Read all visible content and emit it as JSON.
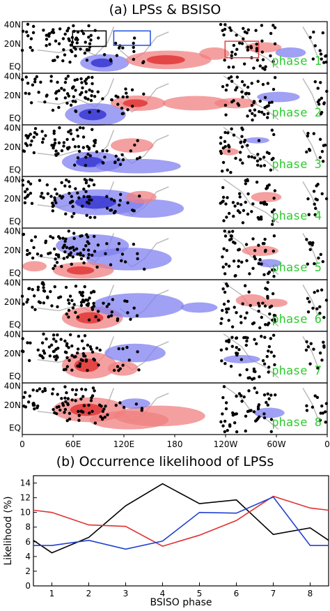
{
  "panel_a": {
    "title": "(a) LPSs & BSISO",
    "lat_labels": [
      "40N",
      "20N",
      "EQ"
    ],
    "lon_labels": [
      "0",
      "60E",
      "120E",
      "180",
      "120W",
      "60W",
      "0"
    ],
    "phase_labels": [
      "phase 1",
      "phase 2",
      "phase 3",
      "phase 4",
      "phase 5",
      "phase 6",
      "phase 7",
      "phase 8"
    ],
    "colors": {
      "positive": "#f08080",
      "positive_strong": "#e03030",
      "negative": "#8080f0",
      "negative_strong": "#3030d0",
      "dots": "#000000",
      "coast": "#b8b8b8",
      "phase_label": "#2ecc2e"
    },
    "boxes": [
      {
        "color": "#000000"
      },
      {
        "color": "#2050e0"
      },
      {
        "color": "#e04040"
      }
    ]
  },
  "chart_data": {
    "type": "line",
    "title": "(b) Occurrence likelihood of LPSs",
    "xlabel": "BSISO phase",
    "ylabel": "Likelihood (%)",
    "x": [
      0.5,
      1,
      2,
      3,
      4,
      5,
      6,
      7,
      8,
      8.5
    ],
    "xlim": [
      0.5,
      8.5
    ],
    "ylim": [
      0,
      15
    ],
    "xticks": [
      "1",
      "2",
      "3",
      "4",
      "5",
      "6",
      "7",
      "8"
    ],
    "yticks": [
      "0",
      "2",
      "4",
      "6",
      "8",
      "10",
      "12",
      "14"
    ],
    "series": [
      {
        "color": "#000000",
        "values": [
          6.2,
          4.5,
          6.6,
          10.9,
          13.9,
          11.2,
          11.7,
          7.0,
          7.9,
          6.2
        ]
      },
      {
        "color": "#e03030",
        "values": [
          10.3,
          10.0,
          8.3,
          8.1,
          5.4,
          6.9,
          8.9,
          12.2,
          10.6,
          10.3
        ]
      },
      {
        "color": "#2040d0",
        "values": [
          5.5,
          5.5,
          6.2,
          5.0,
          6.1,
          10.0,
          9.9,
          12.1,
          5.5,
          5.5
        ]
      }
    ],
    "grid": false
  }
}
